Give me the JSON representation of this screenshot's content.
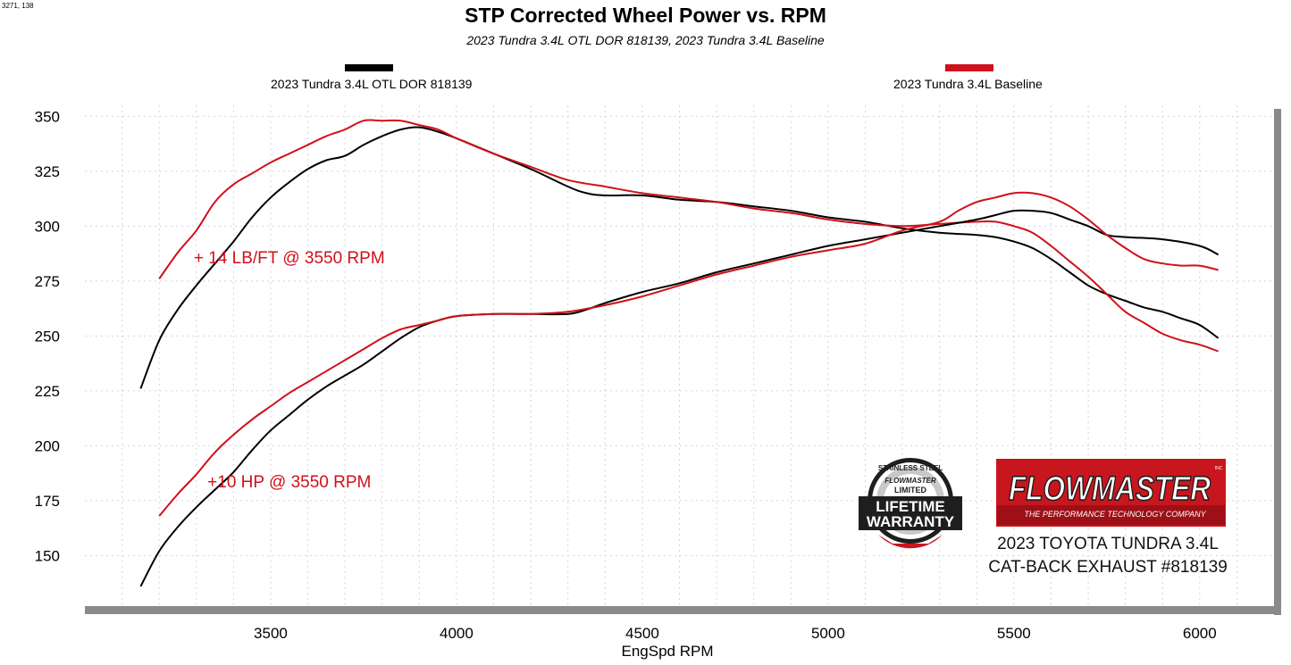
{
  "corner_text": "3271, 138",
  "chart_data": {
    "type": "line",
    "title": "STP Corrected Wheel Power vs. RPM",
    "subtitle": "2023 Tundra 3.4L OTL DOR 818139, 2023 Tundra 3.4L Baseline",
    "xlabel": "EngSpd  RPM",
    "ylabel": "",
    "xlim": [
      3000,
      6200
    ],
    "ylim": [
      127,
      355
    ],
    "x_ticks": [
      3500,
      4000,
      4500,
      5000,
      5500,
      6000
    ],
    "y_ticks": [
      150,
      175,
      200,
      225,
      250,
      275,
      300,
      325,
      350
    ],
    "grid": true,
    "legend": [
      {
        "name": "2023 Tundra 3.4L OTL DOR 818139",
        "color": "#000000"
      },
      {
        "name": "2023 Tundra 3.4L Baseline",
        "color": "#d0101a"
      }
    ],
    "series": [
      {
        "name": "2023 Tundra 3.4L OTL DOR 818139",
        "measure": "torque",
        "color": "#000000",
        "points": [
          [
            3150,
            226
          ],
          [
            3200,
            248
          ],
          [
            3250,
            262
          ],
          [
            3300,
            273
          ],
          [
            3350,
            283
          ],
          [
            3400,
            293
          ],
          [
            3450,
            304
          ],
          [
            3500,
            313
          ],
          [
            3550,
            320
          ],
          [
            3600,
            326
          ],
          [
            3650,
            330
          ],
          [
            3700,
            332
          ],
          [
            3750,
            337
          ],
          [
            3800,
            341
          ],
          [
            3850,
            344
          ],
          [
            3900,
            345
          ],
          [
            3950,
            343
          ],
          [
            4000,
            340
          ],
          [
            4100,
            333
          ],
          [
            4200,
            326
          ],
          [
            4300,
            318
          ],
          [
            4350,
            315
          ],
          [
            4400,
            314
          ],
          [
            4500,
            314
          ],
          [
            4600,
            312
          ],
          [
            4700,
            311
          ],
          [
            4800,
            309
          ],
          [
            4900,
            307
          ],
          [
            5000,
            304
          ],
          [
            5100,
            302
          ],
          [
            5200,
            299
          ],
          [
            5300,
            297
          ],
          [
            5400,
            296
          ],
          [
            5450,
            295
          ],
          [
            5500,
            293
          ],
          [
            5550,
            290
          ],
          [
            5600,
            285
          ],
          [
            5650,
            279
          ],
          [
            5700,
            273
          ],
          [
            5750,
            269
          ],
          [
            5800,
            266
          ],
          [
            5850,
            263
          ],
          [
            5900,
            261
          ],
          [
            5950,
            258
          ],
          [
            6000,
            255
          ],
          [
            6050,
            249
          ]
        ]
      },
      {
        "name": "2023 Tundra 3.4L Baseline",
        "measure": "torque",
        "color": "#d0101a",
        "points": [
          [
            3200,
            276
          ],
          [
            3250,
            288
          ],
          [
            3300,
            298
          ],
          [
            3350,
            311
          ],
          [
            3400,
            319
          ],
          [
            3450,
            324
          ],
          [
            3500,
            329
          ],
          [
            3550,
            333
          ],
          [
            3600,
            337
          ],
          [
            3650,
            341
          ],
          [
            3700,
            344
          ],
          [
            3750,
            348
          ],
          [
            3800,
            348
          ],
          [
            3850,
            348
          ],
          [
            3900,
            346
          ],
          [
            3950,
            344
          ],
          [
            4000,
            340
          ],
          [
            4100,
            333
          ],
          [
            4200,
            327
          ],
          [
            4300,
            321
          ],
          [
            4400,
            318
          ],
          [
            4500,
            315
          ],
          [
            4600,
            313
          ],
          [
            4700,
            311
          ],
          [
            4800,
            308
          ],
          [
            4900,
            306
          ],
          [
            5000,
            303
          ],
          [
            5100,
            301
          ],
          [
            5200,
            300
          ],
          [
            5300,
            301
          ],
          [
            5400,
            302
          ],
          [
            5450,
            302
          ],
          [
            5500,
            300
          ],
          [
            5550,
            297
          ],
          [
            5600,
            291
          ],
          [
            5650,
            284
          ],
          [
            5700,
            277
          ],
          [
            5750,
            269
          ],
          [
            5800,
            261
          ],
          [
            5850,
            256
          ],
          [
            5900,
            251
          ],
          [
            5950,
            248
          ],
          [
            6000,
            246
          ],
          [
            6050,
            243
          ]
        ]
      },
      {
        "name": "2023 Tundra 3.4L OTL DOR 818139",
        "measure": "horsepower",
        "color": "#000000",
        "points": [
          [
            3150,
            136
          ],
          [
            3200,
            152
          ],
          [
            3250,
            163
          ],
          [
            3300,
            172
          ],
          [
            3350,
            180
          ],
          [
            3400,
            188
          ],
          [
            3450,
            198
          ],
          [
            3500,
            207
          ],
          [
            3550,
            214
          ],
          [
            3600,
            221
          ],
          [
            3650,
            227
          ],
          [
            3700,
            232
          ],
          [
            3750,
            237
          ],
          [
            3800,
            243
          ],
          [
            3850,
            249
          ],
          [
            3900,
            254
          ],
          [
            3950,
            257
          ],
          [
            4000,
            259
          ],
          [
            4100,
            260
          ],
          [
            4200,
            260
          ],
          [
            4300,
            260
          ],
          [
            4350,
            262
          ],
          [
            4400,
            265
          ],
          [
            4500,
            270
          ],
          [
            4600,
            274
          ],
          [
            4700,
            279
          ],
          [
            4800,
            283
          ],
          [
            4900,
            287
          ],
          [
            5000,
            291
          ],
          [
            5100,
            294
          ],
          [
            5200,
            297
          ],
          [
            5300,
            300
          ],
          [
            5400,
            303
          ],
          [
            5450,
            305
          ],
          [
            5500,
            307
          ],
          [
            5550,
            307
          ],
          [
            5600,
            306
          ],
          [
            5650,
            303
          ],
          [
            5700,
            300
          ],
          [
            5750,
            296
          ],
          [
            5800,
            295
          ],
          [
            5900,
            294
          ],
          [
            6000,
            291
          ],
          [
            6050,
            287
          ]
        ]
      },
      {
        "name": "2023 Tundra 3.4L Baseline",
        "measure": "horsepower",
        "color": "#d0101a",
        "points": [
          [
            3200,
            168
          ],
          [
            3250,
            178
          ],
          [
            3300,
            187
          ],
          [
            3350,
            197
          ],
          [
            3400,
            205
          ],
          [
            3450,
            212
          ],
          [
            3500,
            218
          ],
          [
            3550,
            224
          ],
          [
            3600,
            229
          ],
          [
            3650,
            234
          ],
          [
            3700,
            239
          ],
          [
            3750,
            244
          ],
          [
            3800,
            249
          ],
          [
            3850,
            253
          ],
          [
            3900,
            255
          ],
          [
            3950,
            257
          ],
          [
            4000,
            259
          ],
          [
            4100,
            260
          ],
          [
            4200,
            260
          ],
          [
            4300,
            261
          ],
          [
            4400,
            264
          ],
          [
            4500,
            268
          ],
          [
            4600,
            273
          ],
          [
            4700,
            278
          ],
          [
            4800,
            282
          ],
          [
            4900,
            286
          ],
          [
            5000,
            289
          ],
          [
            5100,
            292
          ],
          [
            5200,
            298
          ],
          [
            5300,
            302
          ],
          [
            5350,
            307
          ],
          [
            5400,
            311
          ],
          [
            5450,
            313
          ],
          [
            5500,
            315
          ],
          [
            5550,
            315
          ],
          [
            5600,
            313
          ],
          [
            5650,
            309
          ],
          [
            5700,
            303
          ],
          [
            5750,
            296
          ],
          [
            5800,
            290
          ],
          [
            5850,
            285
          ],
          [
            5900,
            283
          ],
          [
            5950,
            282
          ],
          [
            6000,
            282
          ],
          [
            6050,
            280
          ]
        ]
      }
    ],
    "annotations": [
      {
        "text": "+ 14 LB/FT @ 3550 RPM",
        "x": 3550,
        "y": 283,
        "color": "#d0101a"
      },
      {
        "text": "+10 HP @ 3550 RPM",
        "x": 3550,
        "y": 181,
        "color": "#d0101a"
      }
    ]
  },
  "logos": {
    "warranty": {
      "lines": [
        "STAINLESS STEEL",
        "FLOWMASTER",
        "LIMITED",
        "LIFETIME",
        "WARRANTY"
      ]
    },
    "flowmaster": {
      "name": "FLOWMASTER",
      "tagline": "THE PERFORMANCE TECHNOLOGY COMPANY",
      "mark": "INC"
    }
  },
  "caption": {
    "line1": "2023 TOYOTA TUNDRA 3.4L",
    "line2": "CAT-BACK EXHAUST #818139"
  }
}
